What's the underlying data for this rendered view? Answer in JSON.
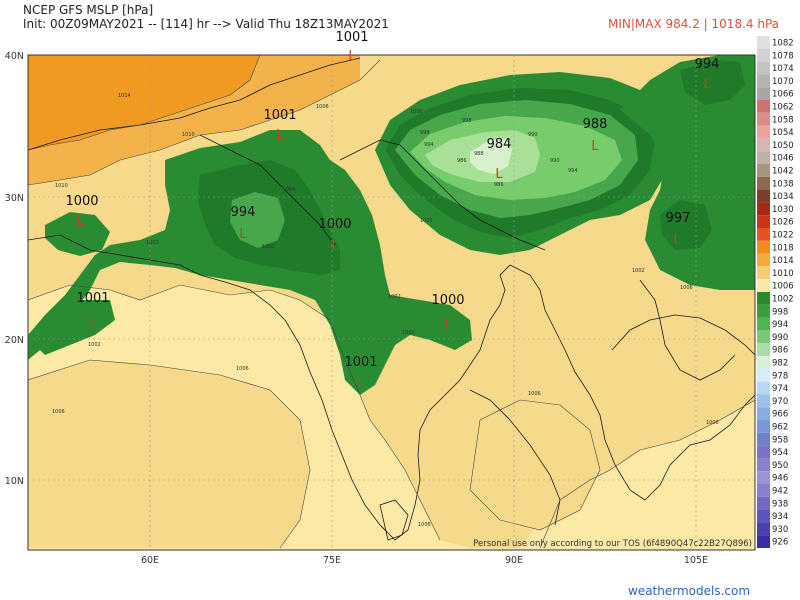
{
  "header": {
    "title": "NCEP GFS MSLP [hPa]",
    "init": "Init: 00Z09MAY2021 -- [114] hr --> Valid Thu 18Z13MAY2021",
    "minmax": "MIN|MAX 984.2 | 1018.4 hPa",
    "minmax_color": "#d9533c"
  },
  "map": {
    "lat_labels": [
      "40N",
      "30N",
      "20N",
      "10N"
    ],
    "lon_labels": [
      "60E",
      "75E",
      "90E",
      "105E"
    ],
    "pressure_labels": [
      "1001",
      "1001",
      "994",
      "988",
      "984",
      "1000",
      "994",
      "1000",
      "997",
      "1001",
      "1000",
      "1001"
    ],
    "low_marker": "L",
    "contour_labels": [
      "1014",
      "1010",
      "1010",
      "1006",
      "1006",
      "1006",
      "1006",
      "1006",
      "1006",
      "1002",
      "1002",
      "1002",
      "1002",
      "1002",
      "1002",
      "998",
      "998",
      "996",
      "994",
      "994",
      "990",
      "990",
      "988",
      "986",
      "986",
      "1002",
      "1006",
      "1006"
    ],
    "disclaimer": "Personal use only according to our TOS (6f4890Q47c22B27Q896)"
  },
  "legend": {
    "levels": [
      "1082",
      "1078",
      "1074",
      "1070",
      "1066",
      "1062",
      "1058",
      "1054",
      "1050",
      "1046",
      "1042",
      "1038",
      "1034",
      "1030",
      "1026",
      "1022",
      "1018",
      "1014",
      "1010",
      "1006",
      "1002",
      "998",
      "994",
      "990",
      "986",
      "982",
      "978",
      "974",
      "970",
      "966",
      "962",
      "958",
      "954",
      "950",
      "946",
      "942",
      "938",
      "934",
      "930",
      "926"
    ],
    "colors": [
      "#e0e0e0",
      "#d2d2d2",
      "#c4c4c4",
      "#b4b4b4",
      "#a6a6a6",
      "#d07070",
      "#de8a8a",
      "#eca0a0",
      "#d3b6b6",
      "#bdb2a6",
      "#a49480",
      "#8c6a52",
      "#7a3f2e",
      "#a42a18",
      "#cc3418",
      "#e45420",
      "#f28a1c",
      "#f4aa38",
      "#f6ce72",
      "#fbe8a8",
      "#2a8a2a",
      "#38a038",
      "#50b450",
      "#78c878",
      "#a8dca8",
      "#d8f0d8",
      "#d8ecf8",
      "#b8d8f0",
      "#9cc2ea",
      "#86aee0",
      "#7a96d8",
      "#7080cc",
      "#7c72c6",
      "#8a80cc",
      "#9a94d6",
      "#8a7ed0",
      "#7268c6",
      "#5c56bc",
      "#4a40b2",
      "#3a2ea8"
    ]
  },
  "footer": {
    "brand": "weathermodels.com",
    "brand_color": "#2a66c4"
  },
  "colors": {
    "ocean": "#fce9a6",
    "land_1006": "#f6d98a",
    "area_1010": "#f4b24a",
    "area_1014": "#f09a22",
    "low_1002": "#2a8c32",
    "low_998": "#1f7a2a",
    "low_994": "#46a84a",
    "low_990": "#78cc6c",
    "low_986": "#a8e098",
    "low_982": "#d6f1cc"
  }
}
